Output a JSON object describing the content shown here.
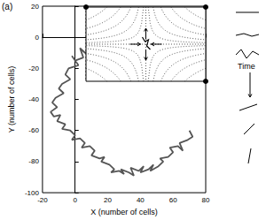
{
  "chart_data": {
    "type": "line",
    "xlabel": "X (number of cells)",
    "ylabel": "Y (number of cells)",
    "annotations": [
      "(a)",
      "Time"
    ],
    "xlim": [
      -20,
      80
    ],
    "xticks": [
      -20,
      0,
      20,
      40,
      60,
      80
    ],
    "ylim": [
      -100,
      20
    ],
    "yticks": [
      -100,
      -80,
      -60,
      -40,
      -20,
      0,
      20
    ],
    "grid": false,
    "color": "#555555",
    "x": [
      10,
      8,
      12,
      6,
      3,
      5,
      0,
      -2,
      2,
      -4,
      -6,
      -3,
      -8,
      -10,
      -7,
      -12,
      -14,
      -11,
      -15,
      -13,
      -9,
      -11,
      -6,
      -8,
      -3,
      0,
      -2,
      3,
      6,
      4,
      9,
      12,
      10,
      15,
      18,
      16,
      21,
      24,
      22,
      27,
      30,
      28,
      33,
      36,
      34,
      39,
      42,
      40,
      45,
      48,
      46,
      51,
      54,
      52,
      57,
      60,
      58,
      63,
      66,
      64,
      69,
      72,
      70
    ],
    "values": [
      -3,
      -6,
      -8,
      -10,
      -7,
      -13,
      -15,
      -12,
      -18,
      -20,
      -24,
      -27,
      -30,
      -33,
      -36,
      -39,
      -42,
      -45,
      -48,
      -51,
      -50,
      -54,
      -56,
      -59,
      -60,
      -63,
      -66,
      -65,
      -68,
      -71,
      -70,
      -73,
      -76,
      -78,
      -77,
      -80,
      -82,
      -85,
      -87,
      -86,
      -88,
      -85,
      -87,
      -89,
      -84,
      -86,
      -83,
      -87,
      -85,
      -82,
      -86,
      -83,
      -80,
      -78,
      -77,
      -74,
      -71,
      -70,
      -73,
      -68,
      -66,
      -64,
      -60
    ]
  }
}
